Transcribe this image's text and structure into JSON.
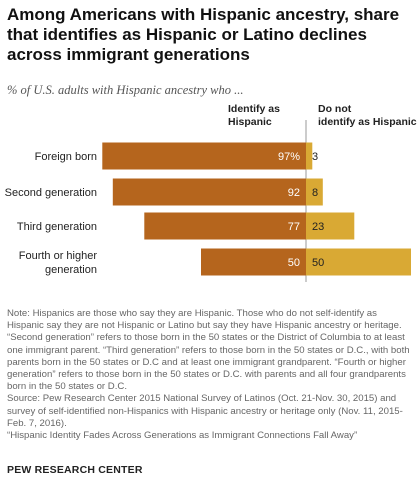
{
  "header": {
    "title": "Among Americans with Hispanic ancestry, share that identifies as Hispanic or Latino declines across immigrant generations",
    "subtitle": "% of U.S. adults with Hispanic ancestry who ..."
  },
  "chart_data": {
    "type": "bar",
    "orientation": "horizontal-diverging",
    "categories": [
      "Foreign born",
      "Second generation",
      "Third generation",
      "Fourth or higher generation"
    ],
    "series": [
      {
        "name": "Identify as Hispanic",
        "values": [
          97,
          92,
          77,
          50
        ],
        "labels": [
          "97%",
          "92",
          "77",
          "50"
        ],
        "color": "#b5651d"
      },
      {
        "name": "Do not identify as Hispanic",
        "values": [
          3,
          8,
          23,
          50
        ],
        "labels": [
          "3",
          "8",
          "23",
          "50"
        ],
        "color": "#d9a934"
      }
    ],
    "xlim": [
      0,
      100
    ]
  },
  "notes": {
    "lines": [
      "Note: Hispanics are those who say they are Hispanic. Those who do not self-identify as Hispanic say they are not Hispanic or Latino but say they have Hispanic ancestry or heritage. “Second generation” refers to those born in the 50 states or the District of Columbia to at least one immigrant parent. “Third generation” refers to those born in the 50 states or D.C., with both parents born in the 50 states or D.C and at least one immigrant grandparent. “Fourth or higher generation” refers to those born in the 50 states or D.C. with parents and all four grandparents born in the 50 states or D.C.",
      "Source: Pew Research Center 2015 National Survey of Latinos (Oct. 21-Nov. 30, 2015) and survey of self-identified non-Hispanics with Hispanic ancestry or heritage only (Nov. 11, 2015-Feb. 7, 2016).",
      "“Hispanic Identity Fades Across Generations as Immigrant Connections Fall Away”"
    ]
  },
  "footer": {
    "org": "PEW RESEARCH CENTER"
  },
  "colors": {
    "identify": "#b5651d",
    "not_identify": "#d9a934",
    "divider": "#9a9a9a"
  }
}
